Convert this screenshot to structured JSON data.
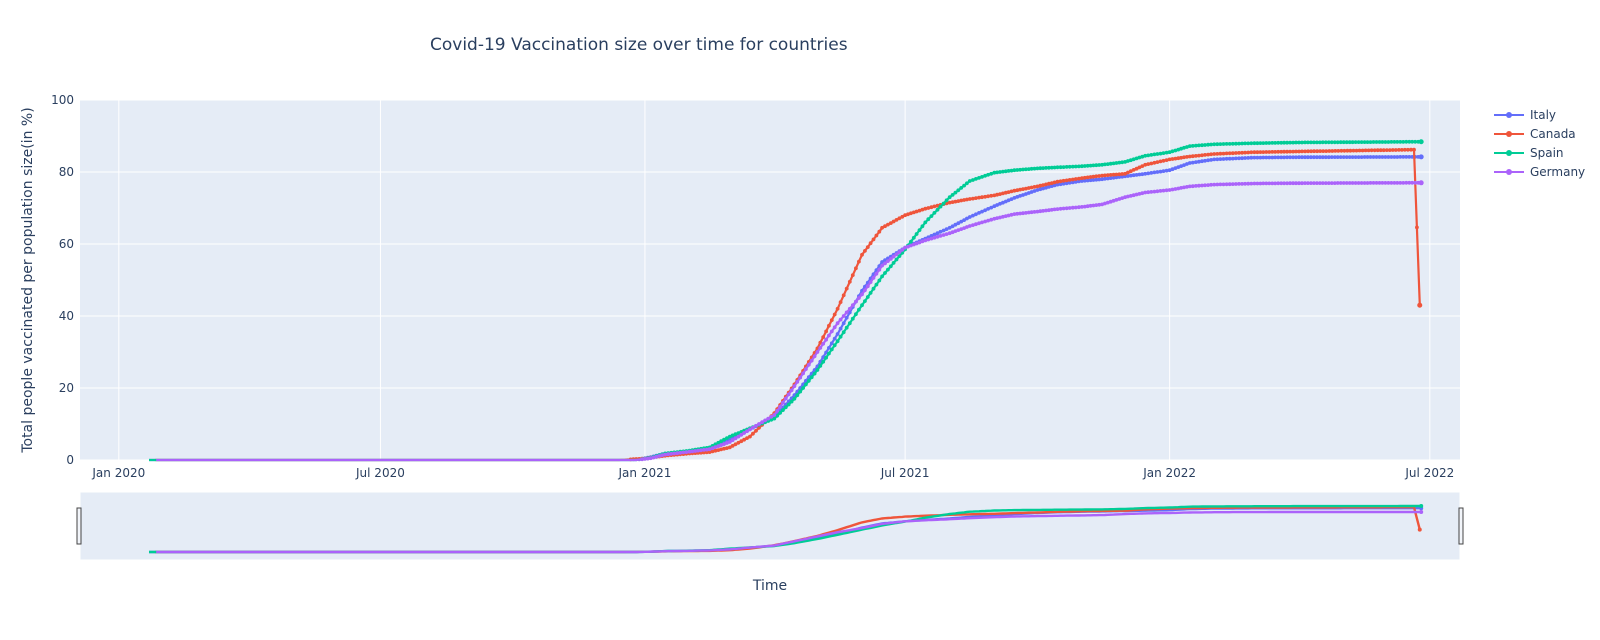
{
  "chart_data": {
    "type": "line",
    "title": "Covid-19 Vaccination size over time for countries",
    "xlabel": "Time",
    "ylabel": "Total people vaccinated per population size(in %)",
    "xlim": [
      "2019-12-05",
      "2022-07-22"
    ],
    "ylim": [
      0,
      100
    ],
    "x_ticks": [
      {
        "date": "2020-01-01",
        "label": "Jan 2020"
      },
      {
        "date": "2020-07-01",
        "label": "Jul 2020"
      },
      {
        "date": "2021-01-01",
        "label": "Jan 2021"
      },
      {
        "date": "2021-07-01",
        "label": "Jul 2021"
      },
      {
        "date": "2022-01-01",
        "label": "Jan 2022"
      },
      {
        "date": "2022-07-01",
        "label": "Jul 2022"
      }
    ],
    "y_ticks": [
      0,
      20,
      40,
      60,
      80,
      100
    ],
    "grid": true,
    "legend_position": "top-right",
    "range_slider": true,
    "series": [
      {
        "name": "Italy",
        "color": "#636efa",
        "points": [
          [
            "2020-01-22",
            0
          ],
          [
            "2020-12-26",
            0
          ],
          [
            "2021-01-05",
            0.8
          ],
          [
            "2021-01-15",
            1.8
          ],
          [
            "2021-02-01",
            2.4
          ],
          [
            "2021-02-15",
            3.2
          ],
          [
            "2021-03-01",
            5.5
          ],
          [
            "2021-03-15",
            8.5
          ],
          [
            "2021-04-01",
            12.0
          ],
          [
            "2021-04-15",
            18.0
          ],
          [
            "2021-05-01",
            26.0
          ],
          [
            "2021-05-15",
            35.0
          ],
          [
            "2021-06-01",
            47.0
          ],
          [
            "2021-06-15",
            55.0
          ],
          [
            "2021-07-01",
            59.0
          ],
          [
            "2021-07-15",
            61.5
          ],
          [
            "2021-08-01",
            64.5
          ],
          [
            "2021-08-15",
            67.5
          ],
          [
            "2021-09-01",
            70.5
          ],
          [
            "2021-09-15",
            72.8
          ],
          [
            "2021-10-01",
            75.0
          ],
          [
            "2021-10-15",
            76.5
          ],
          [
            "2021-11-01",
            77.5
          ],
          [
            "2021-11-15",
            78.0
          ],
          [
            "2021-12-01",
            78.8
          ],
          [
            "2021-12-15",
            79.5
          ],
          [
            "2022-01-01",
            80.5
          ],
          [
            "2022-01-15",
            82.5
          ],
          [
            "2022-02-01",
            83.5
          ],
          [
            "2022-03-01",
            84.0
          ],
          [
            "2022-04-01",
            84.1
          ],
          [
            "2022-06-25",
            84.2
          ]
        ]
      },
      {
        "name": "Canada",
        "color": "#ef553b",
        "points": [
          [
            "2020-01-26",
            0
          ],
          [
            "2020-12-14",
            0
          ],
          [
            "2021-01-01",
            0.4
          ],
          [
            "2021-01-15",
            1.2
          ],
          [
            "2021-02-01",
            1.8
          ],
          [
            "2021-02-15",
            2.2
          ],
          [
            "2021-03-01",
            3.5
          ],
          [
            "2021-03-15",
            6.5
          ],
          [
            "2021-04-01",
            13.0
          ],
          [
            "2021-04-15",
            21.0
          ],
          [
            "2021-05-01",
            31.0
          ],
          [
            "2021-05-15",
            42.0
          ],
          [
            "2021-06-01",
            57.0
          ],
          [
            "2021-06-15",
            64.5
          ],
          [
            "2021-07-01",
            68.0
          ],
          [
            "2021-07-15",
            69.8
          ],
          [
            "2021-08-01",
            71.5
          ],
          [
            "2021-08-15",
            72.5
          ],
          [
            "2021-09-01",
            73.5
          ],
          [
            "2021-09-15",
            74.8
          ],
          [
            "2021-10-01",
            76.0
          ],
          [
            "2021-10-15",
            77.3
          ],
          [
            "2021-11-01",
            78.3
          ],
          [
            "2021-11-15",
            79.0
          ],
          [
            "2021-12-01",
            79.5
          ],
          [
            "2021-12-15",
            82.0
          ],
          [
            "2022-01-01",
            83.5
          ],
          [
            "2022-01-15",
            84.3
          ],
          [
            "2022-02-01",
            85.0
          ],
          [
            "2022-03-01",
            85.5
          ],
          [
            "2022-04-01",
            85.7
          ],
          [
            "2022-06-20",
            86.2
          ],
          [
            "2022-06-24",
            43.0
          ]
        ]
      },
      {
        "name": "Spain",
        "color": "#00cc96",
        "points": [
          [
            "2020-01-22",
            0
          ],
          [
            "2020-12-26",
            0
          ],
          [
            "2021-01-05",
            0.6
          ],
          [
            "2021-01-15",
            1.8
          ],
          [
            "2021-02-01",
            2.6
          ],
          [
            "2021-02-15",
            3.5
          ],
          [
            "2021-03-01",
            6.5
          ],
          [
            "2021-03-15",
            8.8
          ],
          [
            "2021-04-01",
            11.5
          ],
          [
            "2021-04-15",
            17.0
          ],
          [
            "2021-05-01",
            25.0
          ],
          [
            "2021-05-15",
            33.0
          ],
          [
            "2021-06-01",
            43.0
          ],
          [
            "2021-06-15",
            51.0
          ],
          [
            "2021-07-01",
            58.5
          ],
          [
            "2021-07-15",
            66.0
          ],
          [
            "2021-08-01",
            73.0
          ],
          [
            "2021-08-15",
            77.5
          ],
          [
            "2021-09-01",
            79.8
          ],
          [
            "2021-09-15",
            80.5
          ],
          [
            "2021-10-01",
            81.0
          ],
          [
            "2021-10-15",
            81.3
          ],
          [
            "2021-11-01",
            81.6
          ],
          [
            "2021-11-15",
            82.0
          ],
          [
            "2021-12-01",
            82.8
          ],
          [
            "2021-12-15",
            84.5
          ],
          [
            "2022-01-01",
            85.5
          ],
          [
            "2022-01-15",
            87.2
          ],
          [
            "2022-02-01",
            87.7
          ],
          [
            "2022-03-01",
            88.0
          ],
          [
            "2022-04-01",
            88.2
          ],
          [
            "2022-06-25",
            88.4
          ]
        ]
      },
      {
        "name": "Germany",
        "color": "#ab63fa",
        "points": [
          [
            "2020-01-27",
            0
          ],
          [
            "2020-12-26",
            0
          ],
          [
            "2021-01-05",
            0.5
          ],
          [
            "2021-01-15",
            1.5
          ],
          [
            "2021-02-01",
            2.3
          ],
          [
            "2021-02-15",
            3.0
          ],
          [
            "2021-03-01",
            5.0
          ],
          [
            "2021-03-15",
            8.5
          ],
          [
            "2021-04-01",
            12.5
          ],
          [
            "2021-04-15",
            20.5
          ],
          [
            "2021-05-01",
            30.0
          ],
          [
            "2021-05-15",
            38.0
          ],
          [
            "2021-06-01",
            46.0
          ],
          [
            "2021-06-15",
            54.0
          ],
          [
            "2021-07-01",
            59.0
          ],
          [
            "2021-07-15",
            61.0
          ],
          [
            "2021-08-01",
            63.0
          ],
          [
            "2021-08-15",
            65.0
          ],
          [
            "2021-09-01",
            67.0
          ],
          [
            "2021-09-15",
            68.3
          ],
          [
            "2021-10-01",
            69.0
          ],
          [
            "2021-10-15",
            69.7
          ],
          [
            "2021-11-01",
            70.3
          ],
          [
            "2021-11-15",
            71.0
          ],
          [
            "2021-12-01",
            73.0
          ],
          [
            "2021-12-15",
            74.3
          ],
          [
            "2022-01-01",
            75.0
          ],
          [
            "2022-01-15",
            76.0
          ],
          [
            "2022-02-01",
            76.5
          ],
          [
            "2022-03-01",
            76.8
          ],
          [
            "2022-04-01",
            76.9
          ],
          [
            "2022-06-25",
            77.0
          ]
        ]
      }
    ]
  }
}
